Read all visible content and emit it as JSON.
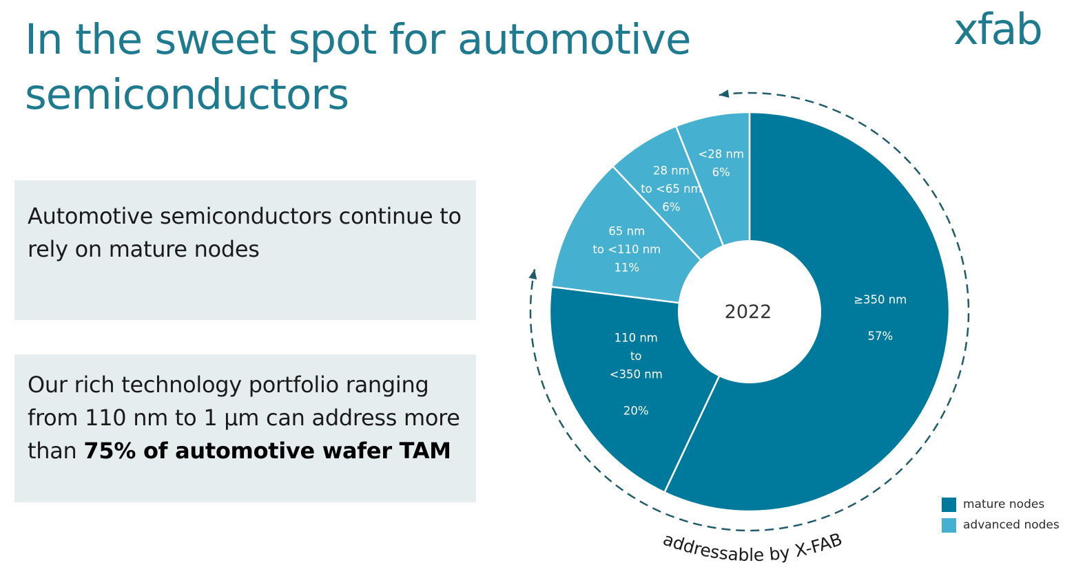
{
  "slide": {
    "title": "In the sweet spot for automotive semiconductors",
    "logo_text": "xfab",
    "box1_text": "Automotive semiconductors continue to rely on mature nodes",
    "box2_text_prefix": "Our rich technology portfolio ranging from 110 nm to 1 µm can address more than ",
    "box2_text_bold": "75% of automotive wafer TAM"
  },
  "colors": {
    "title": "#1E7B8F",
    "mature": "#007A9C",
    "advanced": "#45B0CF",
    "box_bg": "#E6EDEF",
    "arrow": "#1F5C6B"
  },
  "chart_data": {
    "type": "pie",
    "center_label": "2022",
    "categories": [
      "≥350 nm",
      "110 nm to <350 nm",
      "65 nm to <110 nm",
      "28 nm to <65 nm",
      "<28 nm"
    ],
    "values": [
      57,
      20,
      11,
      6,
      6
    ],
    "groups": [
      "mature nodes",
      "mature nodes",
      "advanced nodes",
      "advanced nodes",
      "advanced nodes"
    ],
    "slice_labels": [
      {
        "lines": [
          "≥350 nm",
          "",
          "57%"
        ]
      },
      {
        "lines": [
          "110 nm",
          "to",
          "<350 nm",
          "",
          "20%"
        ]
      },
      {
        "lines": [
          "65 nm",
          "to <110 nm",
          "11%"
        ]
      },
      {
        "lines": [
          "28 nm",
          "to <65 nm",
          "6%"
        ]
      },
      {
        "lines": [
          "<28 nm",
          "6%"
        ]
      }
    ],
    "legend": {
      "placement": "bottom-right",
      "items": [
        {
          "label": "mature nodes",
          "color": "#007A9C"
        },
        {
          "label": "advanced nodes",
          "color": "#45B0CF"
        }
      ]
    },
    "annotation": "addressable by X-FAB"
  }
}
